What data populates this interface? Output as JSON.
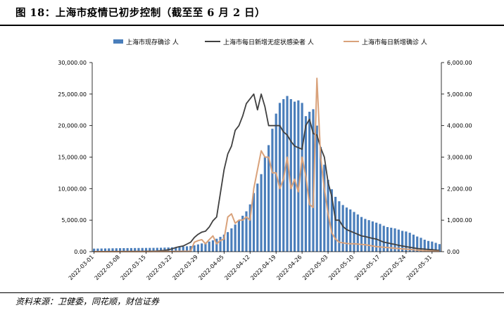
{
  "figure": {
    "title": "图 18：上海市疫情已初步控制（截至至 6 月 2 日）",
    "source": "资料来源：卫健委，同花顺，财信证券"
  },
  "chart_data": {
    "type": "bar+line",
    "dates": [
      "2022-03-01",
      "2022-03-02",
      "2022-03-03",
      "2022-03-04",
      "2022-03-05",
      "2022-03-06",
      "2022-03-07",
      "2022-03-08",
      "2022-03-09",
      "2022-03-10",
      "2022-03-11",
      "2022-03-12",
      "2022-03-13",
      "2022-03-14",
      "2022-03-15",
      "2022-03-16",
      "2022-03-17",
      "2022-03-18",
      "2022-03-19",
      "2022-03-20",
      "2022-03-21",
      "2022-03-22",
      "2022-03-23",
      "2022-03-24",
      "2022-03-25",
      "2022-03-26",
      "2022-03-27",
      "2022-03-28",
      "2022-03-29",
      "2022-03-30",
      "2022-03-31",
      "2022-04-01",
      "2022-04-02",
      "2022-04-03",
      "2022-04-04",
      "2022-04-05",
      "2022-04-06",
      "2022-04-07",
      "2022-04-08",
      "2022-04-09",
      "2022-04-10",
      "2022-04-11",
      "2022-04-12",
      "2022-04-13",
      "2022-04-14",
      "2022-04-15",
      "2022-04-16",
      "2022-04-17",
      "2022-04-18",
      "2022-04-19",
      "2022-04-20",
      "2022-04-21",
      "2022-04-22",
      "2022-04-23",
      "2022-04-24",
      "2022-04-25",
      "2022-04-26",
      "2022-04-27",
      "2022-04-28",
      "2022-04-29",
      "2022-04-30",
      "2022-05-01",
      "2022-05-02",
      "2022-05-03",
      "2022-05-04",
      "2022-05-05",
      "2022-05-06",
      "2022-05-07",
      "2022-05-08",
      "2022-05-09",
      "2022-05-10",
      "2022-05-11",
      "2022-05-12",
      "2022-05-13",
      "2022-05-14",
      "2022-05-15",
      "2022-05-16",
      "2022-05-17",
      "2022-05-18",
      "2022-05-19",
      "2022-05-20",
      "2022-05-21",
      "2022-05-22",
      "2022-05-23",
      "2022-05-24",
      "2022-05-25",
      "2022-05-26",
      "2022-05-27",
      "2022-05-28",
      "2022-05-29",
      "2022-05-30",
      "2022-05-31",
      "2022-06-01",
      "2022-06-02"
    ],
    "x_tick_labels": [
      "2022-03-01",
      "2022-03-08",
      "2022-03-15",
      "2022-03-22",
      "2022-03-29",
      "2022-04-05",
      "2022-04-12",
      "2022-04-19",
      "2022-04-26",
      "2022-05-03",
      "2022-05-10",
      "2022-05-17",
      "2022-05-24",
      "2022-05-31"
    ],
    "left_axis": {
      "min": 0,
      "max": 30000,
      "ticks": [
        "0.00",
        "5,000.00",
        "10,000.00",
        "15,000.00",
        "20,000.00",
        "25,000.00",
        "30,000.00"
      ]
    },
    "right_axis": {
      "min": 0,
      "max": 6000,
      "ticks": [
        "0.00",
        "1,000.00",
        "2,000.00",
        "3,000.00",
        "4,000.00",
        "5,000.00",
        "6,000.00"
      ]
    },
    "legend_position": "top",
    "grid": false,
    "series": [
      {
        "name": "上海市现存确诊 人",
        "type": "bar",
        "axis": "left",
        "color": "#4a7ebb",
        "values": [
          480,
          490,
          500,
          510,
          520,
          530,
          540,
          550,
          560,
          565,
          570,
          575,
          580,
          585,
          590,
          595,
          600,
          610,
          620,
          640,
          660,
          690,
          720,
          760,
          800,
          850,
          900,
          1000,
          1150,
          1300,
          1450,
          1600,
          1800,
          2050,
          2350,
          2700,
          3100,
          3700,
          4300,
          5000,
          5700,
          6400,
          7500,
          9300,
          10800,
          12300,
          15000,
          16900,
          19500,
          21900,
          23600,
          24200,
          24700,
          24200,
          23800,
          24000,
          23600,
          21500,
          22200,
          22600,
          20000,
          16600,
          13800,
          11400,
          9900,
          8700,
          8000,
          7400,
          7000,
          6700,
          6300,
          5900,
          5500,
          5200,
          5000,
          4800,
          4600,
          4400,
          4100,
          3900,
          3800,
          3700,
          3500,
          3300,
          3200,
          3000,
          2700,
          2400,
          2200,
          1900,
          1700,
          1600,
          1400,
          1200
        ]
      },
      {
        "name": "上海市每日新增无症状感染者 人",
        "type": "line",
        "axis": "right",
        "color": "#404040",
        "values": [
          1,
          1,
          2,
          3,
          4,
          4,
          5,
          5,
          6,
          6,
          7,
          7,
          8,
          9,
          10,
          12,
          14,
          20,
          30,
          40,
          60,
          90,
          130,
          160,
          180,
          240,
          300,
          450,
          550,
          620,
          650,
          780,
          980,
          1100,
          1850,
          2600,
          3100,
          3350,
          3850,
          4000,
          4300,
          4700,
          4850,
          5000,
          4500,
          5000,
          4600,
          4000,
          4000,
          4000,
          4000,
          3800,
          3700,
          3500,
          3350,
          3300,
          3250,
          4000,
          4200,
          3750,
          3700,
          3300,
          3000,
          2200,
          1750,
          1000,
          1000,
          800,
          700,
          650,
          600,
          550,
          500,
          480,
          450,
          420,
          400,
          350,
          300,
          280,
          250,
          230,
          200,
          180,
          160,
          140,
          120,
          100,
          90,
          80,
          70,
          60,
          50,
          40
        ]
      },
      {
        "name": "上海市每日新增确诊 人",
        "type": "line",
        "axis": "right",
        "color": "#d9a27b",
        "values": [
          1,
          1,
          1,
          1,
          1,
          1,
          1,
          2,
          2,
          2,
          2,
          3,
          3,
          3,
          4,
          4,
          5,
          5,
          5,
          6,
          6,
          7,
          8,
          9,
          10,
          12,
          15,
          300,
          350,
          380,
          250,
          380,
          500,
          250,
          350,
          400,
          1100,
          1200,
          900,
          1000,
          1000,
          1100,
          1000,
          2000,
          2600,
          3200,
          3000,
          3000,
          2500,
          2500,
          2000,
          2300,
          3000,
          2000,
          2300,
          1900,
          3000,
          2400,
          1500,
          1400,
          5500,
          3000,
          2000,
          1200,
          600,
          400,
          300,
          280,
          260,
          250,
          250,
          240,
          230,
          220,
          200,
          180,
          160,
          150,
          140,
          130,
          120,
          110,
          100,
          90,
          80,
          70,
          60,
          50,
          40,
          30,
          25,
          20,
          15,
          10
        ]
      }
    ]
  }
}
